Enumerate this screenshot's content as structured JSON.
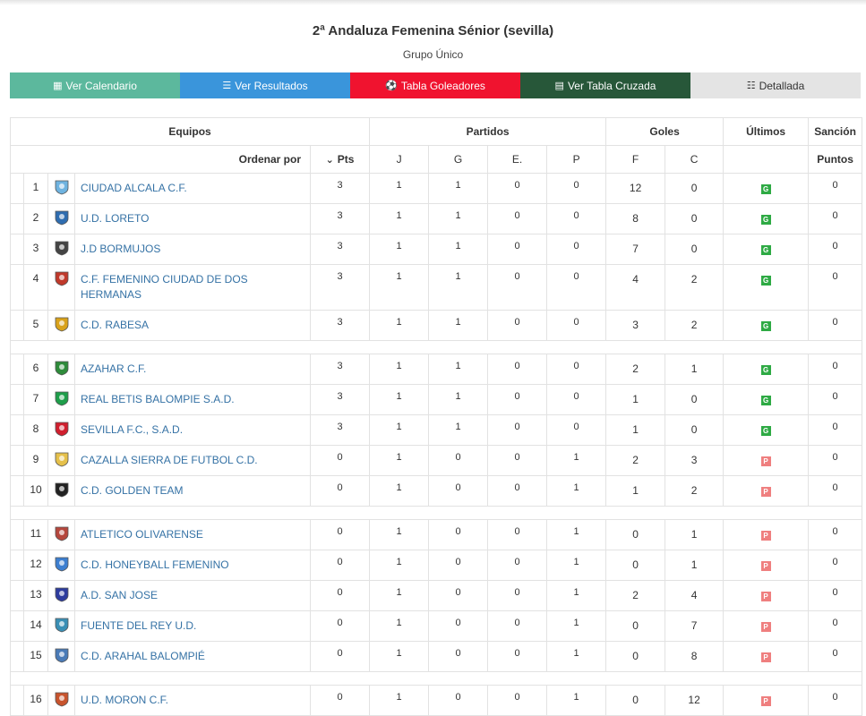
{
  "header": {
    "title": "2ª Andaluza Femenina Sénior (sevilla)",
    "subtitle": "Grupo Único"
  },
  "tabs": [
    {
      "label": "Ver Calendario",
      "icon": "calendar-icon",
      "color": "#5cb89d"
    },
    {
      "label": "Ver Resultados",
      "icon": "list-icon",
      "color": "#3a95db"
    },
    {
      "label": "Tabla Goleadores",
      "icon": "soccer-ball-icon",
      "color": "#f0132f"
    },
    {
      "label": "Ver Tabla Cruzada",
      "icon": "calculator-icon",
      "color": "#275739"
    },
    {
      "label": "Detallada",
      "icon": "list-detail-icon",
      "color": "#e4e4e4"
    }
  ],
  "table": {
    "group_headers": {
      "equipos": "Equipos",
      "partidos": "Partidos",
      "goles": "Goles",
      "ultimos": "Últimos",
      "sancion": "Sanción"
    },
    "sub_headers": {
      "ordenar_por": "Ordenar por",
      "pts": "Pts",
      "j": "J",
      "g": "G",
      "e": "E.",
      "p": "P",
      "f": "F",
      "c": "C",
      "puntos": "Puntos"
    },
    "rows": [
      {
        "pos": "1",
        "name": "CIUDAD ALCALA C.F.",
        "pts": "3",
        "j": "1",
        "g": "1",
        "e": "0",
        "p": "0",
        "f": "12",
        "c": "0",
        "last": "G",
        "pen": "0",
        "crest": "#6fb3e0"
      },
      {
        "pos": "2",
        "name": "U.D. LORETO",
        "pts": "3",
        "j": "1",
        "g": "1",
        "e": "0",
        "p": "0",
        "f": "8",
        "c": "0",
        "last": "G",
        "pen": "0",
        "crest": "#2f6db0"
      },
      {
        "pos": "3",
        "name": "J.D BORMUJOS",
        "pts": "3",
        "j": "1",
        "g": "1",
        "e": "0",
        "p": "0",
        "f": "7",
        "c": "0",
        "last": "G",
        "pen": "0",
        "crest": "#444444"
      },
      {
        "pos": "4",
        "name": "C.F. FEMENINO CIUDAD DE DOS HERMANAS",
        "pts": "3",
        "j": "1",
        "g": "1",
        "e": "0",
        "p": "0",
        "f": "4",
        "c": "2",
        "last": "G",
        "pen": "0",
        "crest": "#c0392b"
      },
      {
        "pos": "5",
        "name": "C.D. RABESA",
        "pts": "3",
        "j": "1",
        "g": "1",
        "e": "0",
        "p": "0",
        "f": "3",
        "c": "2",
        "last": "G",
        "pen": "0",
        "crest": "#d9a21b"
      },
      {
        "pos": "6",
        "name": "AZAHAR C.F.",
        "pts": "3",
        "j": "1",
        "g": "1",
        "e": "0",
        "p": "0",
        "f": "2",
        "c": "1",
        "last": "G",
        "pen": "0",
        "crest": "#2e8b3a"
      },
      {
        "pos": "7",
        "name": "REAL BETIS BALOMPIE S.A.D.",
        "pts": "3",
        "j": "1",
        "g": "1",
        "e": "0",
        "p": "0",
        "f": "1",
        "c": "0",
        "last": "G",
        "pen": "0",
        "crest": "#1e9e4a"
      },
      {
        "pos": "8",
        "name": "SEVILLA F.C., S.A.D.",
        "pts": "3",
        "j": "1",
        "g": "1",
        "e": "0",
        "p": "0",
        "f": "1",
        "c": "0",
        "last": "G",
        "pen": "0",
        "crest": "#d01f2e"
      },
      {
        "pos": "9",
        "name": "CAZALLA SIERRA DE FUTBOL C.D.",
        "pts": "0",
        "j": "1",
        "g": "0",
        "e": "0",
        "p": "1",
        "f": "2",
        "c": "3",
        "last": "P",
        "pen": "0",
        "crest": "#e5c04a"
      },
      {
        "pos": "10",
        "name": "C.D. GOLDEN TEAM",
        "pts": "0",
        "j": "1",
        "g": "0",
        "e": "0",
        "p": "1",
        "f": "1",
        "c": "2",
        "last": "P",
        "pen": "0",
        "crest": "#222222"
      },
      {
        "pos": "11",
        "name": "ATLETICO OLIVARENSE",
        "pts": "0",
        "j": "1",
        "g": "0",
        "e": "0",
        "p": "1",
        "f": "0",
        "c": "1",
        "last": "P",
        "pen": "0",
        "crest": "#b5473d"
      },
      {
        "pos": "12",
        "name": "C.D. HONEYBALL FEMENINO",
        "pts": "0",
        "j": "1",
        "g": "0",
        "e": "0",
        "p": "1",
        "f": "0",
        "c": "1",
        "last": "P",
        "pen": "0",
        "crest": "#3d7fd0"
      },
      {
        "pos": "13",
        "name": "A.D. SAN JOSE",
        "pts": "0",
        "j": "1",
        "g": "0",
        "e": "0",
        "p": "1",
        "f": "2",
        "c": "4",
        "last": "P",
        "pen": "0",
        "crest": "#2d3c9e"
      },
      {
        "pos": "14",
        "name": "FUENTE DEL REY U.D.",
        "pts": "0",
        "j": "1",
        "g": "0",
        "e": "0",
        "p": "1",
        "f": "0",
        "c": "7",
        "last": "P",
        "pen": "0",
        "crest": "#3a8fb5"
      },
      {
        "pos": "15",
        "name": "C.D. ARAHAL BALOMPIÉ",
        "pts": "0",
        "j": "1",
        "g": "0",
        "e": "0",
        "p": "1",
        "f": "0",
        "c": "8",
        "last": "P",
        "pen": "0",
        "crest": "#4a7bb7"
      },
      {
        "pos": "16",
        "name": "U.D. MORON C.F.",
        "pts": "0",
        "j": "1",
        "g": "0",
        "e": "0",
        "p": "1",
        "f": "0",
        "c": "12",
        "last": "P",
        "pen": "0",
        "crest": "#c8542d"
      }
    ]
  }
}
